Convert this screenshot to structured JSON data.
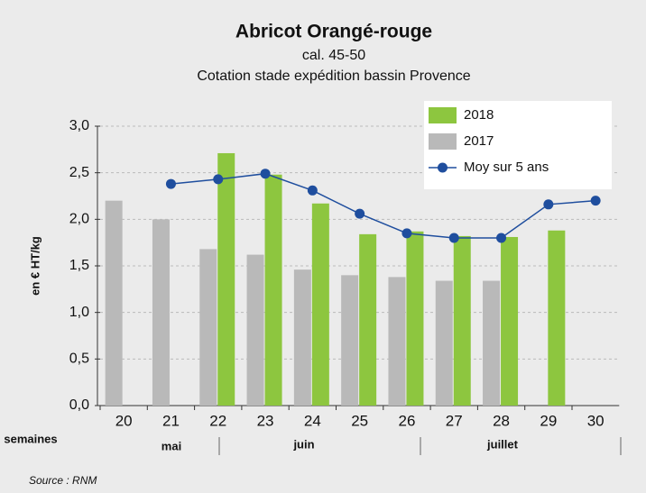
{
  "chart_data": {
    "type": "bar",
    "title": "Abricot Orangé-rouge",
    "subtitle": [
      "cal. 45-50",
      "Cotation stade expédition bassin Provence"
    ],
    "y_label": "en € HT/kg",
    "x_label": "semaines",
    "months": [
      "mai",
      "juin",
      "juillet"
    ],
    "source": "Source : RNM",
    "categories": [
      "20",
      "21",
      "22",
      "23",
      "24",
      "25",
      "26",
      "27",
      "28",
      "29",
      "30"
    ],
    "series": [
      {
        "name": "2018",
        "color": "#8dc63f",
        "kind": "bar",
        "values": [
          null,
          null,
          2.71,
          2.48,
          2.17,
          1.84,
          1.87,
          1.82,
          1.81,
          1.88,
          null
        ]
      },
      {
        "name": "2017",
        "color": "#b9b9b9",
        "kind": "bar",
        "values": [
          2.2,
          2.0,
          1.68,
          1.62,
          1.46,
          1.4,
          1.38,
          1.34,
          1.34,
          null,
          null
        ]
      },
      {
        "name": "Moy sur 5 ans",
        "color": "#1f4e9e",
        "kind": "line",
        "values": [
          null,
          2.38,
          2.43,
          2.49,
          2.31,
          2.06,
          1.85,
          1.8,
          1.8,
          2.16,
          2.2
        ]
      }
    ],
    "ylim": [
      0,
      3
    ],
    "yticks": [
      {
        "value": 0,
        "label": "0,0"
      },
      {
        "value": 0.5,
        "label": "0,5"
      },
      {
        "value": 1,
        "label": "1,0"
      },
      {
        "value": 1.5,
        "label": "1,5"
      },
      {
        "value": 2,
        "label": "2,0"
      },
      {
        "value": 2.5,
        "label": "2,5"
      },
      {
        "value": 3,
        "label": "3,0"
      }
    ],
    "grid": true
  }
}
